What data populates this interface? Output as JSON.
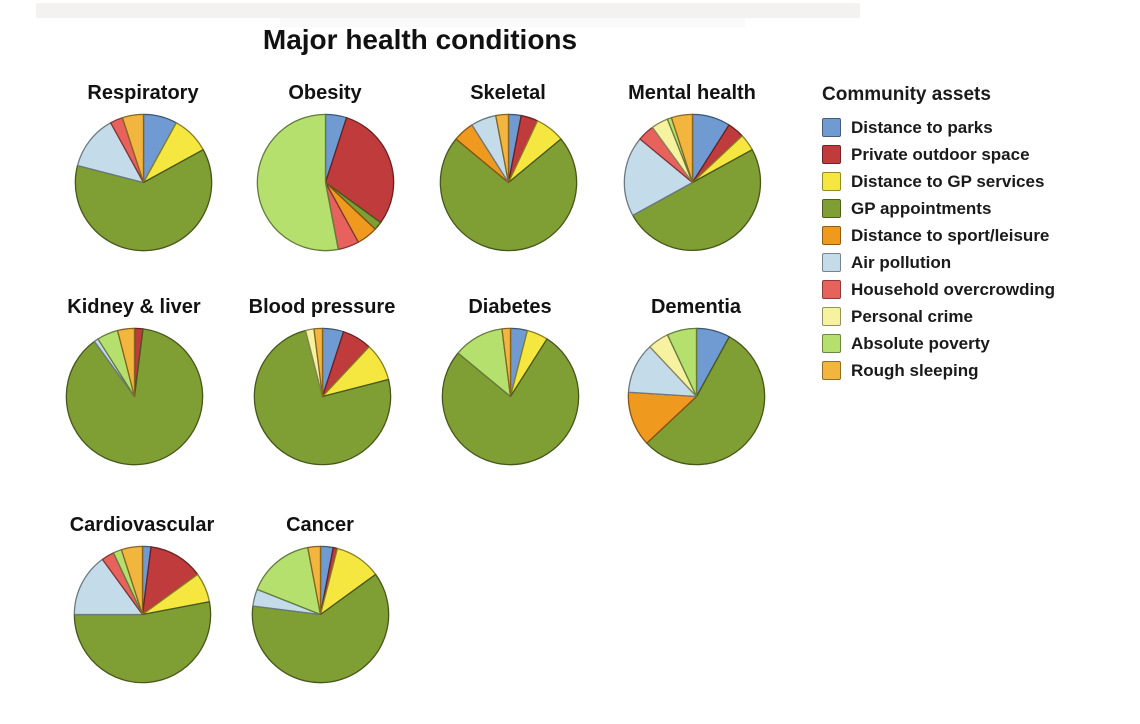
{
  "chart_data": {
    "type": "pie",
    "title": "Major health conditions",
    "legend_title": "Community assets",
    "legend_position": "right",
    "units": "percent",
    "categories": [
      "Distance to parks",
      "Private outdoor space",
      "Distance to GP services",
      "GP appointments",
      "Distance to sport/leisure",
      "Air pollution",
      "Household overcrowding",
      "Personal crime",
      "Absolute poverty",
      "Rough sleeping"
    ],
    "colors": [
      "#6f9bd2",
      "#bf3b3c",
      "#f5e73f",
      "#7f9e33",
      "#f0991f",
      "#c4dcea",
      "#e8625d",
      "#f6f2a0",
      "#b5e06d",
      "#f2b53d"
    ],
    "pies": [
      {
        "name": "Respiratory",
        "values": [
          8,
          0,
          9,
          62,
          0,
          13,
          3,
          0,
          0,
          5
        ]
      },
      {
        "name": "Obesity",
        "values": [
          5,
          30,
          0,
          2,
          5,
          0,
          5,
          0,
          53,
          0
        ]
      },
      {
        "name": "Skeletal",
        "values": [
          3,
          4,
          7,
          72,
          5,
          6,
          0,
          0,
          0,
          3
        ]
      },
      {
        "name": "Mental health",
        "values": [
          9,
          4,
          4,
          50,
          0,
          19,
          4,
          4,
          1,
          5
        ]
      },
      {
        "name": "Kidney & liver",
        "values": [
          0,
          2,
          0,
          88,
          0,
          1,
          0,
          0,
          5,
          4
        ]
      },
      {
        "name": "Blood pressure",
        "values": [
          5,
          7,
          9,
          75,
          0,
          0,
          0,
          2,
          0,
          2
        ]
      },
      {
        "name": "Diabetes",
        "values": [
          4,
          0,
          5,
          77,
          0,
          0,
          0,
          0,
          12,
          2
        ]
      },
      {
        "name": "Dementia",
        "values": [
          8,
          0,
          0,
          55,
          13,
          12,
          0,
          5,
          7,
          0
        ]
      },
      {
        "name": "Cardiovascular",
        "values": [
          2,
          13,
          7,
          53,
          0,
          15,
          3,
          0,
          2,
          5
        ]
      },
      {
        "name": "Cancer",
        "values": [
          3,
          1,
          11,
          62,
          0,
          4,
          0,
          0,
          16,
          3
        ]
      }
    ]
  }
}
